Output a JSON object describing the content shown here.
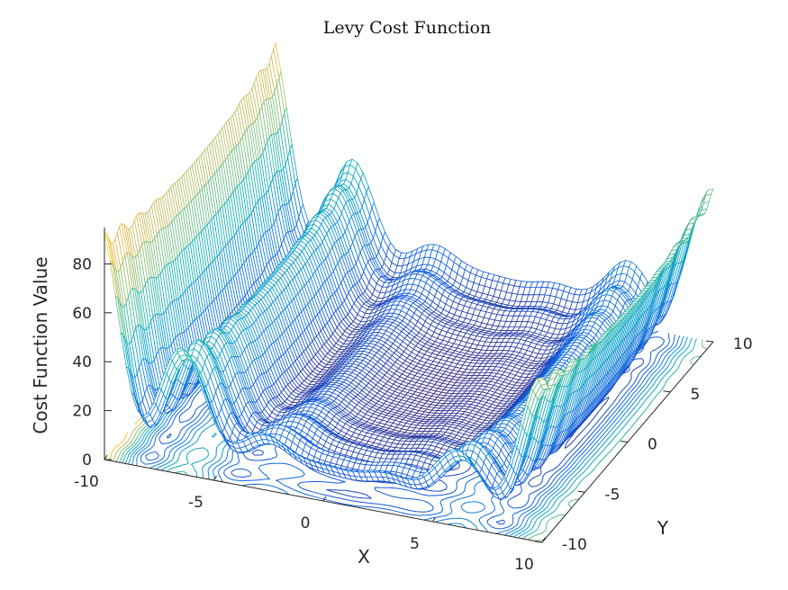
{
  "chart_data": {
    "type": "surface",
    "title": "Levy Cost Function",
    "xlabel": "X",
    "ylabel": "Y",
    "zlabel": "Cost Function Value",
    "xlim": [
      -10,
      10
    ],
    "ylim": [
      -10,
      10
    ],
    "zlim": [
      0,
      95
    ],
    "x_ticks": [
      "-10",
      "-5",
      "0",
      "5",
      "10"
    ],
    "y_ticks": [
      "-10",
      "-5",
      "0",
      "5",
      "10"
    ],
    "z_ticks": [
      "0",
      "20",
      "40",
      "60",
      "80"
    ],
    "colormap": "parula",
    "features": [
      "mesh surface",
      "contour lines on base plane"
    ]
  }
}
